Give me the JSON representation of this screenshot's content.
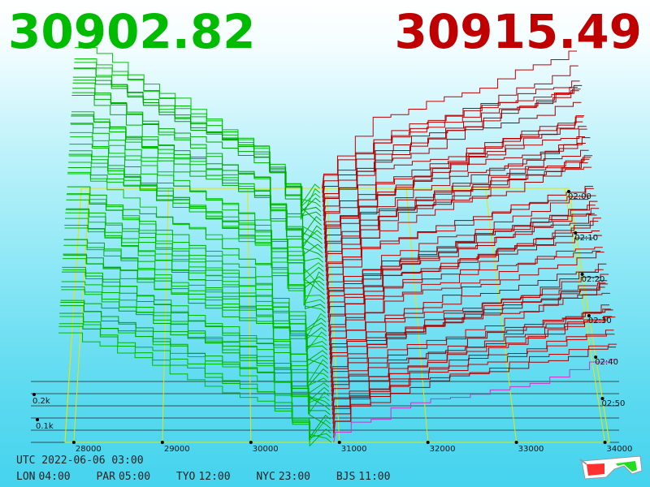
{
  "bid_price": "30902.82",
  "ask_price": "30915.49",
  "colors": {
    "bid": "#00bb00",
    "ask": "#c00000",
    "grid": "#e6e600",
    "baseline": "#222222",
    "latest_ask": "#cc33cc"
  },
  "clocks": {
    "utc": "UTC 2022-06-06 03:00",
    "zones": [
      {
        "label": "LON",
        "time": "04:00"
      },
      {
        "label": "PAR",
        "time": "05:00"
      },
      {
        "label": "TYO",
        "time": "12:00"
      },
      {
        "label": "NYC",
        "time": "23:00"
      },
      {
        "label": "BJS",
        "time": "11:00"
      }
    ]
  },
  "icon": "3d-glasses-icon",
  "chart_data": {
    "type": "area",
    "x_ticks": [
      "28000",
      "29000",
      "30000",
      "31000",
      "32000",
      "33000",
      "34000"
    ],
    "x_values": [
      28000,
      29000,
      30000,
      31000,
      32000,
      33000,
      34000
    ],
    "xlim": [
      27900,
      34050
    ],
    "depth_ticks": [
      "0.1k",
      "0.2k"
    ],
    "depth_values": [
      100,
      200
    ],
    "time_ticks": [
      "02:00",
      "02:10",
      "02:20",
      "02:30",
      "02:40",
      "02:50"
    ],
    "mid_price": 30909,
    "series": [
      {
        "side": "bid",
        "mid": 30902.82
      },
      {
        "side": "ask",
        "mid": 30915.49
      }
    ]
  }
}
